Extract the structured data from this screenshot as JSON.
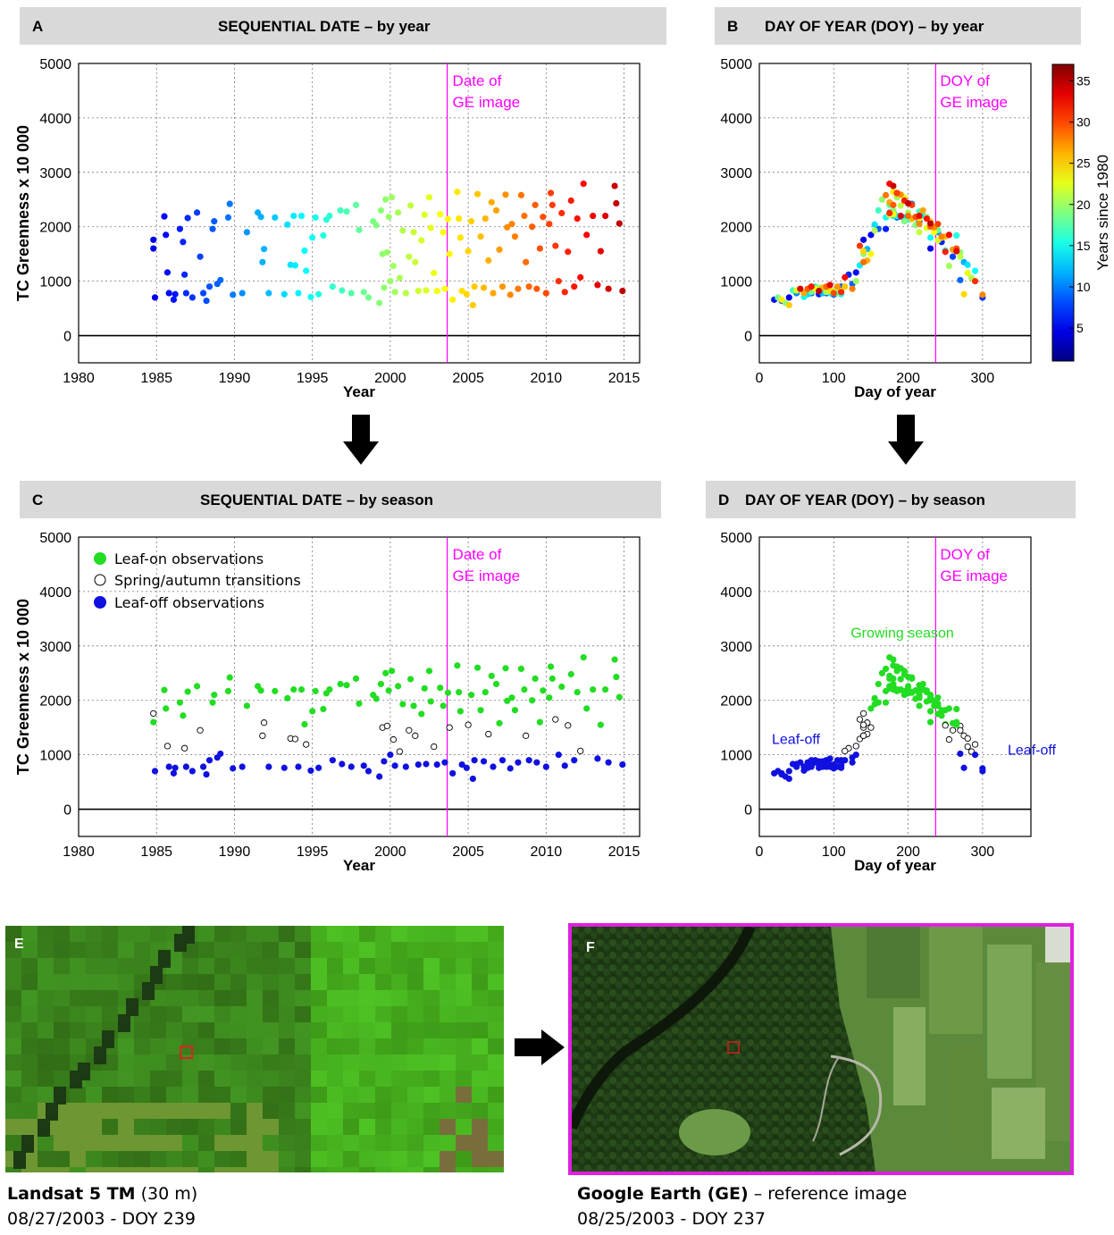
{
  "panels": {
    "A": {
      "letter": "A",
      "title": "SEQUENTIAL DATE – by year"
    },
    "B": {
      "letter": "B",
      "title": "DAY OF YEAR (DOY) – by year"
    },
    "C": {
      "letter": "C",
      "title": "SEQUENTIAL DATE – by season"
    },
    "D": {
      "letter": "D",
      "title": "DAY OF YEAR (DOY) – by season"
    }
  },
  "annotations": {
    "date_of_ge_1": "Date of",
    "date_of_ge_2": "GE image",
    "doy_of_ge_1": "DOY of",
    "doy_of_ge_2": "GE image",
    "growing_season": "Growing season",
    "leaf_off": "Leaf-off"
  },
  "legend": {
    "leaf_on": "Leaf-on observations",
    "transition": "Spring/autumn transitions",
    "leaf_off": "Leaf-off observations"
  },
  "colorbar": {
    "label": "Years since 1980",
    "ticks": [
      5,
      10,
      15,
      20,
      25,
      30,
      35
    ],
    "range": [
      1,
      37
    ]
  },
  "colors": {
    "leaf_on": "#22dd22",
    "leaf_off": "#1010e0",
    "transition_edge": "#000000",
    "ge_line": "#ff00ff",
    "header_bg": "#d9d9d9"
  },
  "chart_data": [
    {
      "type": "scatter",
      "panel": "A",
      "xlabel": "Year",
      "ylabel": "TC Greenness x 10 000",
      "xlim": [
        1980,
        2016
      ],
      "ylim": [
        -500,
        5000
      ],
      "grid": true,
      "x_ticks": [
        1980,
        1985,
        1990,
        1995,
        2000,
        2005,
        2010,
        2015
      ],
      "y_ticks": [
        0,
        1000,
        2000,
        3000,
        4000,
        5000
      ],
      "ge_date": 2003.65,
      "color_by": "Years since 1980"
    },
    {
      "type": "scatter",
      "panel": "B",
      "xlabel": "Day of year",
      "ylabel": "",
      "xlim": [
        0,
        365
      ],
      "ylim": [
        -500,
        5000
      ],
      "grid": true,
      "x_ticks": [
        0,
        100,
        200,
        300
      ],
      "y_ticks": [
        0,
        1000,
        2000,
        3000,
        4000,
        5000
      ],
      "ge_doy": 237,
      "color_by": "Years since 1980"
    },
    {
      "type": "scatter",
      "panel": "C",
      "xlabel": "Year",
      "ylabel": "TC Greenness x 10 000",
      "xlim": [
        1980,
        2016
      ],
      "ylim": [
        -500,
        5000
      ],
      "grid": true,
      "x_ticks": [
        1980,
        1985,
        1990,
        1995,
        2000,
        2005,
        2010,
        2015
      ],
      "y_ticks": [
        0,
        1000,
        2000,
        3000,
        4000,
        5000
      ],
      "ge_date": 2003.65,
      "series": [
        "Leaf-on observations",
        "Spring/autumn transitions",
        "Leaf-off observations"
      ]
    },
    {
      "type": "scatter",
      "panel": "D",
      "xlabel": "Day of year",
      "ylabel": "",
      "xlim": [
        0,
        365
      ],
      "ylim": [
        -500,
        5000
      ],
      "grid": true,
      "x_ticks": [
        0,
        100,
        200,
        300
      ],
      "y_ticks": [
        0,
        1000,
        2000,
        3000,
        4000,
        5000
      ],
      "ge_doy": 237,
      "series": [
        "Leaf-on observations",
        "Spring/autumn transitions",
        "Leaf-off observations"
      ]
    }
  ],
  "observations": [
    [
      1984.8,
      1760,
      140
    ],
    [
      1984.8,
      1600,
      230
    ],
    [
      1984.9,
      700,
      40
    ],
    [
      1985.5,
      2190,
      190
    ],
    [
      1985.6,
      1850,
      150
    ],
    [
      1985.7,
      1160,
      130
    ],
    [
      1985.8,
      780,
      60
    ],
    [
      1986.1,
      660,
      20
    ],
    [
      1986.2,
      760,
      80
    ],
    [
      1986.5,
      1960,
      170
    ],
    [
      1986.7,
      1720,
      245
    ],
    [
      1986.8,
      1120,
      120
    ],
    [
      1986.9,
      780,
      90
    ],
    [
      1987.0,
      2160,
      200
    ],
    [
      1987.3,
      700,
      300
    ],
    [
      1987.6,
      2260,
      180
    ],
    [
      1987.8,
      1450,
      260
    ],
    [
      1988.0,
      780,
      70
    ],
    [
      1988.2,
      640,
      30
    ],
    [
      1988.4,
      900,
      110
    ],
    [
      1988.6,
      1960,
      160
    ],
    [
      1988.7,
      2100,
      215
    ],
    [
      1988.9,
      950,
      125
    ],
    [
      1989.1,
      1020,
      270
    ],
    [
      1989.6,
      2170,
      185
    ],
    [
      1989.7,
      2420,
      205
    ],
    [
      1989.9,
      750,
      100
    ],
    [
      1990.5,
      780,
      50
    ],
    [
      1990.8,
      1900,
      240
    ],
    [
      1991.5,
      2260,
      175
    ],
    [
      1991.7,
      2180,
      210
    ],
    [
      1991.8,
      1350,
      275
    ],
    [
      1991.9,
      1590,
      145
    ],
    [
      1992.2,
      780,
      85
    ],
    [
      1992.6,
      2170,
      195
    ],
    [
      1993.2,
      760,
      65
    ],
    [
      1993.4,
      2040,
      155
    ],
    [
      1993.6,
      1300,
      280
    ],
    [
      1993.8,
      2200,
      180
    ],
    [
      1993.9,
      1290,
      135
    ],
    [
      1994.1,
      780,
      95
    ],
    [
      1994.3,
      2200,
      220
    ],
    [
      1994.5,
      1560,
      250
    ],
    [
      1994.6,
      1190,
      290
    ],
    [
      1994.9,
      710,
      60
    ],
    [
      1995.0,
      1800,
      230
    ],
    [
      1995.2,
      2170,
      170
    ],
    [
      1995.4,
      760,
      110
    ],
    [
      1995.7,
      1840,
      265
    ],
    [
      1995.9,
      2130,
      200
    ],
    [
      1996.1,
      2200,
      185
    ],
    [
      1996.3,
      900,
      75
    ],
    [
      1996.8,
      2300,
      160
    ],
    [
      1996.9,
      830,
      45
    ],
    [
      1997.2,
      2280,
      215
    ],
    [
      1997.5,
      780,
      105
    ],
    [
      1997.8,
      2400,
      175
    ],
    [
      1998.0,
      1940,
      240
    ],
    [
      1998.3,
      800,
      70
    ],
    [
      1998.6,
      700,
      25
    ],
    [
      1998.9,
      2100,
      195
    ],
    [
      1999.1,
      2030,
      210
    ],
    [
      1999.3,
      600,
      35
    ],
    [
      1999.4,
      2300,
      180
    ],
    [
      1999.5,
      1500,
      140
    ],
    [
      1999.6,
      880,
      80
    ],
    [
      1999.7,
      2500,
      165
    ],
    [
      1999.8,
      1530,
      270
    ],
    [
      1999.9,
      2180,
      225
    ],
    [
      2000.0,
      1000,
      130
    ],
    [
      2000.1,
      2540,
      185
    ],
    [
      2000.2,
      1280,
      255
    ],
    [
      2000.3,
      800,
      90
    ],
    [
      2000.5,
      2260,
      200
    ],
    [
      2000.6,
      1060,
      285
    ],
    [
      2000.8,
      1930,
      155
    ],
    [
      2001.0,
      780,
      60
    ],
    [
      2001.2,
      1450,
      270
    ],
    [
      2001.3,
      2390,
      190
    ],
    [
      2001.5,
      1900,
      215
    ],
    [
      2001.6,
      1350,
      140
    ],
    [
      2001.8,
      820,
      100
    ],
    [
      2002.0,
      1750,
      240
    ],
    [
      2002.2,
      2220,
      175
    ],
    [
      2002.3,
      830,
      50
    ],
    [
      2002.5,
      2540,
      195
    ],
    [
      2002.6,
      1980,
      225
    ],
    [
      2002.8,
      1150,
      280
    ],
    [
      2003.0,
      820,
      110
    ],
    [
      2003.2,
      2230,
      180
    ],
    [
      2003.4,
      1900,
      235
    ],
    [
      2003.5,
      860,
      75
    ],
    [
      2003.7,
      2140,
      205
    ],
    [
      2003.8,
      1500,
      150
    ],
    [
      2004.0,
      660,
      30
    ],
    [
      2004.3,
      2640,
      180
    ],
    [
      2004.4,
      2150,
      215
    ],
    [
      2004.5,
      1800,
      245
    ],
    [
      2004.6,
      820,
      95
    ],
    [
      2004.9,
      760,
      275
    ],
    [
      2005.0,
      1550,
      140
    ],
    [
      2005.2,
      2100,
      230
    ],
    [
      2005.3,
      560,
      40
    ],
    [
      2005.4,
      900,
      115
    ],
    [
      2005.6,
      2600,
      185
    ],
    [
      2005.8,
      1820,
      250
    ],
    [
      2006.0,
      880,
      85
    ],
    [
      2006.1,
      2150,
      205
    ],
    [
      2006.3,
      1380,
      145
    ],
    [
      2006.5,
      2450,
      175
    ],
    [
      2006.6,
      780,
      60
    ],
    [
      2006.8,
      2300,
      220
    ],
    [
      2007.0,
      1580,
      260
    ],
    [
      2007.2,
      900,
      105
    ],
    [
      2007.4,
      2590,
      190
    ],
    [
      2007.5,
      1990,
      235
    ],
    [
      2007.7,
      750,
      300
    ],
    [
      2007.8,
      2050,
      215
    ],
    [
      2008.0,
      1820,
      245
    ],
    [
      2008.2,
      860,
      125
    ],
    [
      2008.4,
      2580,
      170
    ],
    [
      2008.6,
      2200,
      200
    ],
    [
      2008.7,
      1350,
      140
    ],
    [
      2008.9,
      900,
      90
    ],
    [
      2009.1,
      2000,
      230
    ],
    [
      2009.3,
      2400,
      180
    ],
    [
      2009.4,
      860,
      65
    ],
    [
      2009.6,
      1600,
      265
    ],
    [
      2009.8,
      2180,
      210
    ],
    [
      2010.0,
      780,
      100
    ],
    [
      2010.2,
      2050,
      240
    ],
    [
      2010.3,
      2620,
      185
    ],
    [
      2010.4,
      2400,
      205
    ],
    [
      2010.6,
      1650,
      135
    ],
    [
      2010.8,
      1000,
      290
    ],
    [
      2011.0,
      2250,
      175
    ],
    [
      2011.2,
      800,
      110
    ],
    [
      2011.4,
      1540,
      250
    ],
    [
      2011.6,
      2480,
      195
    ],
    [
      2011.8,
      900,
      70
    ],
    [
      2012.0,
      2150,
      225
    ],
    [
      2012.2,
      1070,
      115
    ],
    [
      2012.4,
      2790,
      175
    ],
    [
      2012.6,
      1850,
      255
    ],
    [
      2013.0,
      2200,
      215
    ],
    [
      2013.3,
      930,
      95
    ],
    [
      2013.5,
      1550,
      265
    ],
    [
      2013.8,
      2200,
      190
    ],
    [
      2014.0,
      860,
      55
    ],
    [
      2014.4,
      2750,
      180
    ],
    [
      2014.5,
      2430,
      200
    ],
    [
      2014.7,
      2060,
      230
    ],
    [
      2014.9,
      820,
      80
    ]
  ]
}
